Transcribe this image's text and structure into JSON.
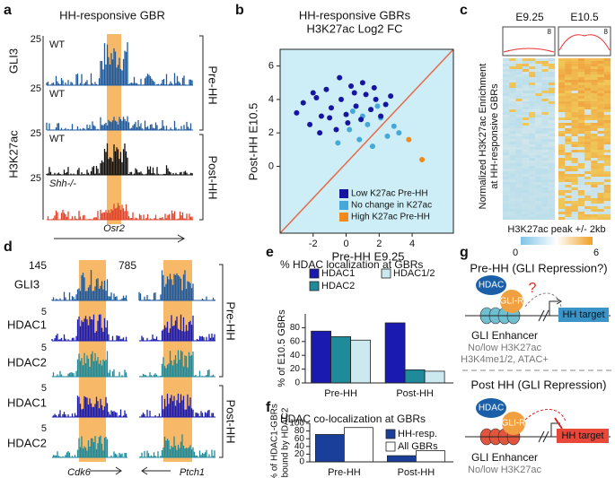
{
  "panel_labels": [
    "a",
    "b",
    "c",
    "d",
    "e",
    "f",
    "g"
  ],
  "panel_a": {
    "title": "HH-responsive GBR",
    "scale": 25,
    "factor_labels": [
      "GLI3",
      "H3K27ac"
    ],
    "track_labels": [
      "WT",
      "WT",
      "WT",
      "Shh-/-"
    ],
    "stage_labels": [
      "Pre-HH",
      "Post-HH"
    ],
    "gene": "Osr2"
  },
  "panel_c": {
    "columns": [
      "E9.25",
      "E10.5"
    ],
    "profile_max": 8,
    "y_label": [
      "Normalized H3K27ac Enrichment",
      "at HH-responsive GBRs"
    ],
    "x_label": "H3K27ac peak +/- 2kb",
    "colorbar": [
      0,
      6
    ]
  },
  "panel_d": {
    "scales": [
      145,
      785
    ],
    "row_scale": 5,
    "track_labels": [
      "GLI3",
      "HDAC1",
      "HDAC2",
      "HDAC1",
      "HDAC2"
    ],
    "stage_labels": [
      "Pre-HH",
      "Post-HH"
    ],
    "genes": [
      "Cdk6",
      "Ptch1"
    ]
  },
  "panel_g": {
    "pre": {
      "title": "Pre-HH (GLI Repression?)",
      "hdac": "HDAC",
      "glir": "GLI-R",
      "question": "?",
      "target": "HH target",
      "enhancer": "GLI Enhancer",
      "notes": [
        "No/low H3K27ac",
        "H3K4me1/2, ATAC+"
      ]
    },
    "post": {
      "title": "Post HH (GLI Repression)",
      "hdac": "HDAC",
      "glir": "GLI-R",
      "target": "HH target",
      "enhancer": "GLI Enhancer",
      "notes": [
        "No/low H3K27ac"
      ]
    }
  },
  "chart_data": [
    {
      "type": "scatter",
      "title": "HH-responsive GBRs",
      "subtitle": "H3K27ac Log2 FC",
      "x_label": "Pre-HH E9.25",
      "y_label": "Post-HH E10.5",
      "xlim": [
        -4,
        6.5
      ],
      "ylim": [
        -4,
        7
      ],
      "xticks": [
        -2,
        0,
        2,
        4
      ],
      "yticks": [
        0,
        2,
        4,
        6
      ],
      "series": [
        {
          "name": "High K27ac Pre-HH",
          "color": "#f08a1c",
          "x": [
            3.8,
            4.6
          ],
          "y": [
            1.6,
            0.4
          ]
        },
        {
          "name": "No change in K27ac",
          "color": "#45a8d8",
          "x": [
            -0.5,
            0.2,
            0.8,
            1.3,
            1.6,
            2.1,
            2.5,
            2.9,
            1.0,
            0.4,
            1.9,
            3.2
          ],
          "y": [
            1.4,
            2.2,
            1.6,
            2.5,
            1.2,
            2.9,
            1.8,
            2.4,
            3.0,
            3.3,
            3.6,
            2.0
          ]
        },
        {
          "name": "Low K27ac Pre-HH",
          "color": "#1515a0",
          "x": [
            -3.0,
            -2.6,
            -2.2,
            -1.8,
            -1.5,
            -1.2,
            -0.9,
            -0.6,
            -0.3,
            0.0,
            0.3,
            0.6,
            0.9,
            1.2,
            1.5,
            1.8,
            2.1,
            2.4,
            -2.0,
            -1.0,
            0.1,
            1.0,
            -0.4,
            0.5,
            1.7,
            -1.6,
            2.7
          ],
          "y": [
            3.2,
            3.8,
            2.5,
            4.1,
            3.0,
            4.6,
            3.5,
            2.2,
            4.0,
            3.1,
            4.8,
            3.6,
            2.8,
            4.3,
            3.4,
            4.0,
            3.0,
            3.7,
            4.4,
            2.9,
            2.6,
            5.0,
            5.3,
            4.4,
            4.7,
            2.0,
            4.2
          ]
        }
      ]
    },
    {
      "type": "bar",
      "title": "% HDAC localization at GBRs",
      "y_label": "% of E10.5 GBRs",
      "categories": [
        "Pre-HH",
        "Post-HH"
      ],
      "ylim": [
        0,
        100
      ],
      "yticks": [
        0,
        20,
        40,
        60,
        80
      ],
      "series": [
        {
          "name": "HDAC1",
          "color": "#1a1ab0",
          "values": [
            75,
            87
          ]
        },
        {
          "name": "HDAC2",
          "color": "#1f8a9a",
          "values": [
            67,
            19
          ]
        },
        {
          "name": "HDAC1/2",
          "color": "#cce9f0",
          "values": [
            62,
            17
          ]
        }
      ]
    },
    {
      "type": "bar",
      "title": "HDAC co-localization at GBRs",
      "y_label": [
        "% of HDAC1-GBRs",
        "bound by HDAC2"
      ],
      "categories": [
        "Pre-HH",
        "Post-HH"
      ],
      "ylim": [
        0,
        100
      ],
      "yticks": [
        0,
        20,
        40,
        60,
        80,
        100
      ],
      "series": [
        {
          "name": "HH-resp.",
          "color": "#1a3f9a",
          "values": [
            71,
            16
          ]
        },
        {
          "name": "All GBRs",
          "color": "#ffffff",
          "values": [
            89,
            29
          ]
        }
      ]
    }
  ]
}
